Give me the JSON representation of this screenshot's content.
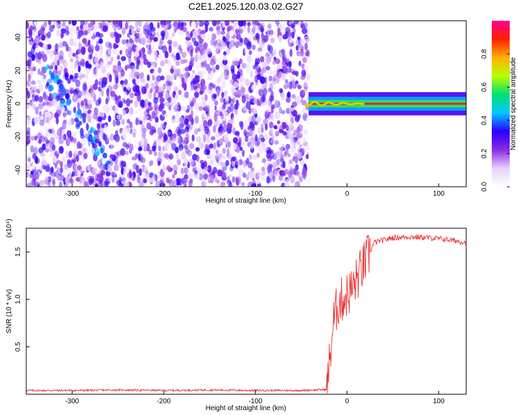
{
  "page": {
    "title": "C2E1.2025.120.03.02.G27"
  },
  "chart_data": [
    {
      "type": "heatmap",
      "title": "C2E1.2025.120.03.02.G27",
      "xlabel": "Height of straight line (km)",
      "ylabel": "Frequency (Hz)",
      "xlim": [
        -350,
        130
      ],
      "ylim": [
        -50,
        50
      ],
      "x_ticks": [
        -300,
        -200,
        -100,
        0,
        100
      ],
      "x_tick_labels": [
        "-300",
        "-200",
        "-100",
        "0",
        "100"
      ],
      "y_ticks": [
        -40,
        -20,
        0,
        20,
        40
      ],
      "y_tick_labels": [
        "-40",
        "-20",
        "0",
        "20",
        "40"
      ],
      "colorbar": {
        "label": "Normalized spectral amplitude",
        "range": [
          0,
          1
        ],
        "ticks": [
          0.0,
          0.2,
          0.4,
          0.6,
          0.8
        ],
        "tick_labels": [
          "0.0",
          "0.2",
          "0.4",
          "0.6",
          "0.8"
        ],
        "colormap": [
          "#ffffff",
          "#e6d2ff",
          "#8a2be2",
          "#2a00ff",
          "#00c8ff",
          "#00e070",
          "#b8ff00",
          "#ffb000",
          "#ff2000",
          "#ff0090"
        ]
      },
      "features": {
        "noise_region_x": [
          -350,
          -42
        ],
        "noise_region_amplitude": 0.15,
        "diagonal_band": {
          "x": [
            -330,
            -260
          ],
          "y": [
            20,
            -35
          ],
          "amplitude": 0.3
        },
        "carrier_start_x": -42,
        "carrier_frequency": 0,
        "carrier_amplitude": 0.95,
        "halo_halfwidth_hz": 7
      },
      "grid": false
    },
    {
      "type": "line",
      "xlabel": "Height of straight line (km)",
      "ylabel": "SNR (10 * v/v)",
      "y_scale_label": "(x10⁴)",
      "xlim": [
        -350,
        130
      ],
      "ylim": [
        0,
        1.75
      ],
      "x_ticks": [
        -300,
        -200,
        -100,
        0,
        100
      ],
      "x_tick_labels": [
        "-300",
        "-200",
        "-100",
        "0",
        "100"
      ],
      "y_ticks": [
        0.5,
        1.0,
        1.5
      ],
      "y_tick_labels": [
        "0.5",
        "1.0",
        "1.5"
      ],
      "color": "#ee3333",
      "series": [
        {
          "x": [
            -350,
            -300,
            -250,
            -200,
            -150,
            -100,
            -50,
            -22,
            -20,
            -18,
            -15,
            -10,
            -5,
            0,
            5,
            10,
            20,
            30,
            50,
            70,
            90,
            110,
            130
          ],
          "y": [
            0.04,
            0.04,
            0.045,
            0.04,
            0.045,
            0.04,
            0.04,
            0.05,
            0.25,
            0.45,
            0.75,
            0.95,
            1.0,
            1.05,
            1.1,
            1.2,
            1.4,
            1.6,
            1.65,
            1.66,
            1.65,
            1.63,
            1.6
          ]
        }
      ],
      "grid": false
    }
  ]
}
